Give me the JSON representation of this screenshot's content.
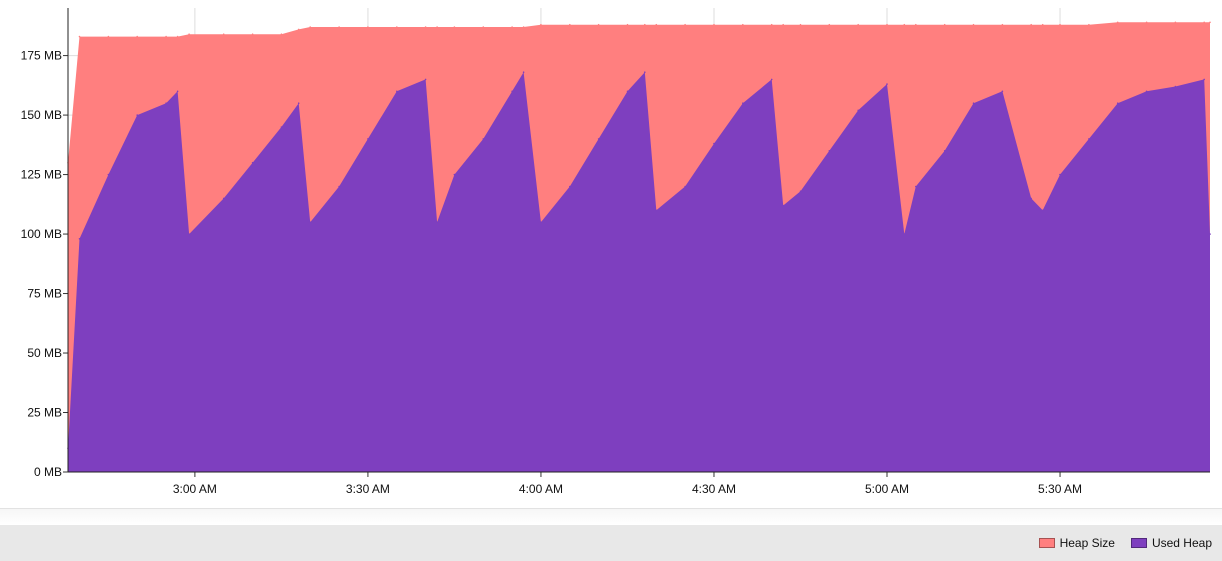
{
  "chart_data": {
    "type": "area",
    "title": "",
    "xlabel": "",
    "ylabel": "",
    "y_unit": "MB",
    "ylim": [
      0,
      195
    ],
    "y_ticks": [
      0,
      25,
      50,
      75,
      100,
      125,
      150,
      175
    ],
    "y_tick_labels": [
      "0 MB",
      "25 MB",
      "50 MB",
      "75 MB",
      "100 MB",
      "125 MB",
      "150 MB",
      "175 MB"
    ],
    "x_range": [
      "2:38 AM",
      "5:56 AM"
    ],
    "x_ticks": [
      "3:00 AM",
      "3:30 AM",
      "4:00 AM",
      "4:30 AM",
      "5:00 AM",
      "5:30 AM"
    ],
    "grid": true,
    "legend_position": "bottom-right",
    "x": [
      "2:38 AM",
      "2:40 AM",
      "2:45 AM",
      "2:50 AM",
      "2:55 AM",
      "2:57 AM",
      "2:59 AM",
      "3:05 AM",
      "3:10 AM",
      "3:15 AM",
      "3:18 AM",
      "3:20 AM",
      "3:25 AM",
      "3:30 AM",
      "3:35 AM",
      "3:40 AM",
      "3:42 AM",
      "3:45 AM",
      "3:50 AM",
      "3:55 AM",
      "3:57 AM",
      "4:00 AM",
      "4:05 AM",
      "4:10 AM",
      "4:15 AM",
      "4:18 AM",
      "4:20 AM",
      "4:25 AM",
      "4:30 AM",
      "4:35 AM",
      "4:40 AM",
      "4:42 AM",
      "4:45 AM",
      "4:50 AM",
      "4:55 AM",
      "5:00 AM",
      "5:03 AM",
      "5:05 AM",
      "5:10 AM",
      "5:15 AM",
      "5:20 AM",
      "5:25 AM",
      "5:27 AM",
      "5:30 AM",
      "5:35 AM",
      "5:40 AM",
      "5:45 AM",
      "5:50 AM",
      "5:55 AM",
      "5:56 AM"
    ],
    "series": [
      {
        "name": "Heap Size",
        "color": "#ff7f7f",
        "values": [
          130,
          183,
          183,
          183,
          183,
          183,
          184,
          184,
          184,
          184,
          186,
          187,
          187,
          187,
          187,
          187,
          187,
          187,
          187,
          187,
          187,
          188,
          188,
          188,
          188,
          188,
          188,
          188,
          188,
          188,
          188,
          188,
          188,
          188,
          188,
          188,
          188,
          188,
          188,
          188,
          188,
          188,
          188,
          188,
          188,
          189,
          189,
          189,
          189,
          189
        ]
      },
      {
        "name": "Used Heap",
        "color": "#7e3fbf",
        "values": [
          10,
          98,
          125,
          150,
          155,
          160,
          100,
          115,
          130,
          145,
          155,
          105,
          120,
          140,
          160,
          165,
          105,
          125,
          140,
          160,
          168,
          105,
          120,
          140,
          160,
          168,
          110,
          120,
          138,
          155,
          165,
          112,
          118,
          135,
          152,
          163,
          100,
          120,
          135,
          155,
          160,
          115,
          110,
          125,
          140,
          155,
          160,
          162,
          165,
          100
        ]
      }
    ]
  },
  "legend": {
    "items": [
      {
        "label": "Heap Size",
        "color": "#ff7f7f"
      },
      {
        "label": "Used Heap",
        "color": "#7e3fbf"
      }
    ]
  }
}
